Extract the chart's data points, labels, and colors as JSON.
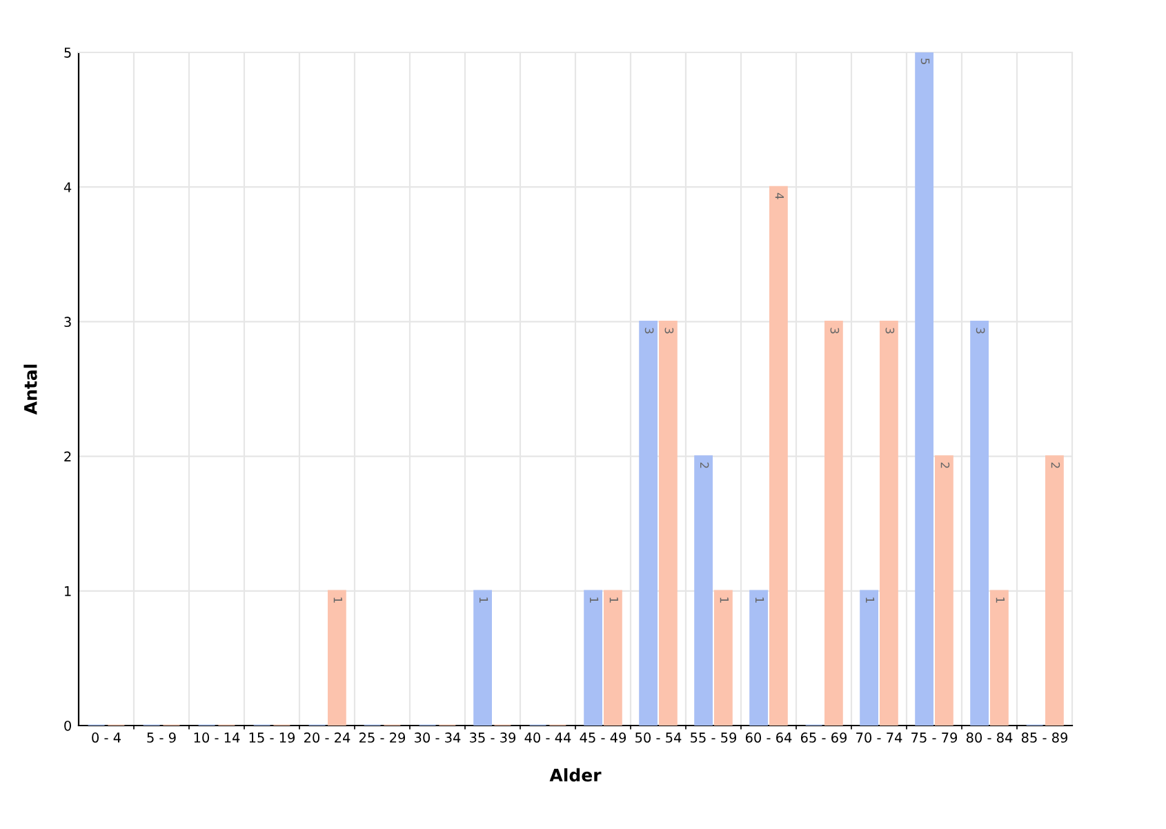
{
  "chart_data": {
    "type": "bar",
    "xlabel": "Alder",
    "ylabel": "Antal",
    "categories": [
      "0 - 4",
      "5 - 9",
      "10 - 14",
      "15 - 19",
      "20 - 24",
      "25 - 29",
      "30 - 34",
      "35 - 39",
      "40 - 44",
      "45 - 49",
      "50 - 54",
      "55 - 59",
      "60 - 64",
      "65 - 69",
      "70 - 74",
      "75 - 79",
      "80 - 84",
      "85 - 89"
    ],
    "series": [
      {
        "color": "#a8bff5",
        "values": [
          0,
          0,
          0,
          0,
          0,
          0,
          0,
          1,
          0,
          1,
          3,
          2,
          1,
          0,
          1,
          5,
          3,
          0
        ],
        "value_labels": [
          null,
          null,
          null,
          null,
          null,
          null,
          null,
          "1",
          null,
          "1",
          "3",
          "2",
          "1",
          null,
          "1",
          "5",
          "3",
          null
        ]
      },
      {
        "color": "#fcc3ad",
        "values": [
          0,
          0,
          0,
          0,
          1,
          0,
          0,
          0,
          0,
          1,
          3,
          1,
          4,
          3,
          3,
          2,
          1,
          2
        ],
        "value_labels": [
          null,
          null,
          null,
          null,
          "1",
          null,
          null,
          null,
          null,
          "1",
          "3",
          "1",
          "4",
          "3",
          "3",
          "2",
          "1",
          "2"
        ]
      }
    ],
    "ylim": [
      0,
      5
    ],
    "yticks": [
      0,
      1,
      2,
      3,
      4,
      5
    ],
    "grid": true,
    "legend": false
  }
}
